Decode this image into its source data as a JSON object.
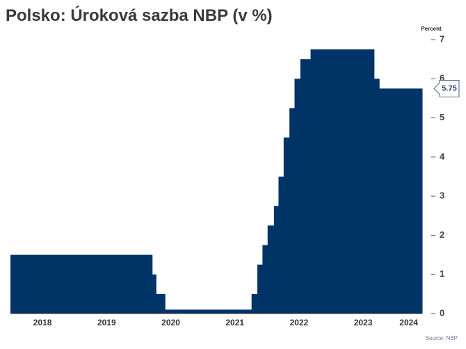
{
  "chart_data": {
    "type": "step-area",
    "title": "Polsko: Úroková sazba NBP (v %)",
    "y_axis_label": "Percent",
    "source": "Source: NBP",
    "color": "#003366",
    "x": [
      2018,
      2020.21,
      2020.27,
      2020.41,
      2021.76,
      2021.85,
      2021.93,
      2022.01,
      2022.11,
      2022.18,
      2022.26,
      2022.35,
      2022.43,
      2022.52,
      2022.68,
      2023.67,
      2023.75
    ],
    "values": [
      1.5,
      1.0,
      0.5,
      0.1,
      0.5,
      1.25,
      1.75,
      2.25,
      2.75,
      3.5,
      4.5,
      5.25,
      6.0,
      6.5,
      6.75,
      6.0,
      5.75
    ],
    "xlim": [
      2018,
      2024.42
    ],
    "xticks": [
      {
        "value": 2018.5,
        "label": "2018"
      },
      {
        "value": 2019.5,
        "label": "2019"
      },
      {
        "value": 2020.5,
        "label": "2020"
      },
      {
        "value": 2021.5,
        "label": "2021"
      },
      {
        "value": 2022.5,
        "label": "2022"
      },
      {
        "value": 2023.5,
        "label": "2023"
      },
      {
        "value": 2024.21,
        "label": "2024"
      }
    ],
    "ylim": [
      0,
      7
    ],
    "yticks": [
      0,
      1,
      2,
      3,
      4,
      5,
      6,
      7
    ],
    "y_axis_side": "right",
    "grid": false
  }
}
